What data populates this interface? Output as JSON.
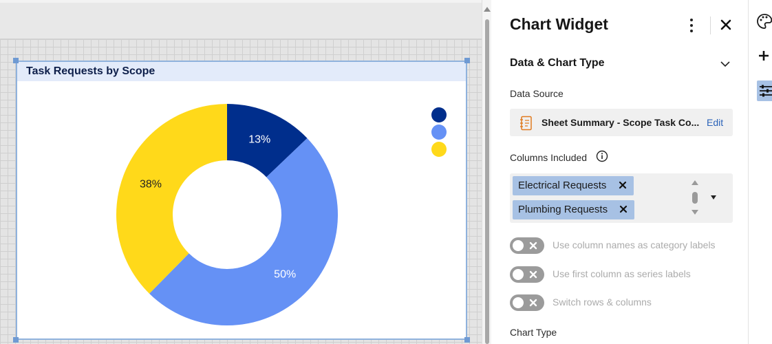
{
  "widget": {
    "title": "Task Requests by Scope"
  },
  "chart_data": {
    "type": "pie",
    "variant": "donut",
    "title": "Task Requests by Scope",
    "slices": [
      {
        "label": "13%",
        "value": 13,
        "color": "#002e8c"
      },
      {
        "label": "50%",
        "value": 50,
        "color": "#6591f5"
      },
      {
        "label": "38%",
        "value": 38,
        "color": "#ffd91a"
      }
    ],
    "legend_colors": [
      "#002e8c",
      "#6591f5",
      "#ffd91a"
    ],
    "legend_position": "top-right"
  },
  "panel": {
    "title": "Chart Widget",
    "section_title": "Data & Chart Type",
    "data_source_label": "Data Source",
    "data_source_name": "Sheet Summary - Scope Task Co...",
    "edit_label": "Edit",
    "columns_label": "Columns Included",
    "columns": [
      "Electrical Requests",
      "Plumbing Requests"
    ],
    "toggles": [
      {
        "label": "Use column names as category labels",
        "on": false
      },
      {
        "label": "Use first column as series labels",
        "on": false
      },
      {
        "label": "Switch rows & columns",
        "on": false
      }
    ],
    "chart_type_label": "Chart Type"
  },
  "icons": {
    "more": "more-vertical-icon",
    "close": "close-icon",
    "collapse": "chevron-down-icon",
    "sheet": "sheet-icon",
    "info": "info-icon",
    "rail": [
      "palette-icon",
      "plus-icon",
      "sliders-icon"
    ]
  },
  "colors": {
    "accent": "#2a62b8",
    "chip": "#a7c1e4",
    "widget_header": "#e3ebfa"
  }
}
